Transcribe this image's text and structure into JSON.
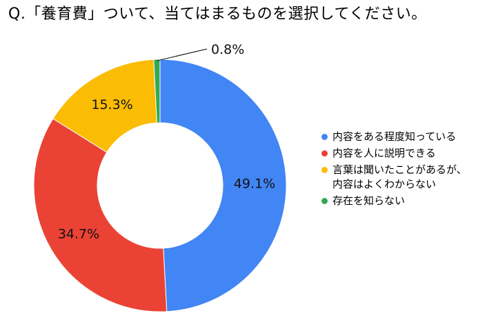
{
  "question": "Q.「養育費」ついて、当てはまるものを選択してください。",
  "chart_data": {
    "type": "pie",
    "donut": true,
    "legend_position": "right",
    "slices": [
      {
        "label": "内容をある程度知っている",
        "value": 49.1,
        "display": "49.1%",
        "color": "#4285F4"
      },
      {
        "label": "内容を人に説明できる",
        "value": 34.7,
        "display": "34.7%",
        "color": "#EA4335"
      },
      {
        "label": "言葉は聞いたことがあるが、\n内容はよくわからない",
        "value": 15.3,
        "display": "15.3%",
        "color": "#FBBC04"
      },
      {
        "label": "存在を知らない",
        "value": 0.8,
        "display": "0.8%",
        "color": "#34A853"
      }
    ]
  }
}
